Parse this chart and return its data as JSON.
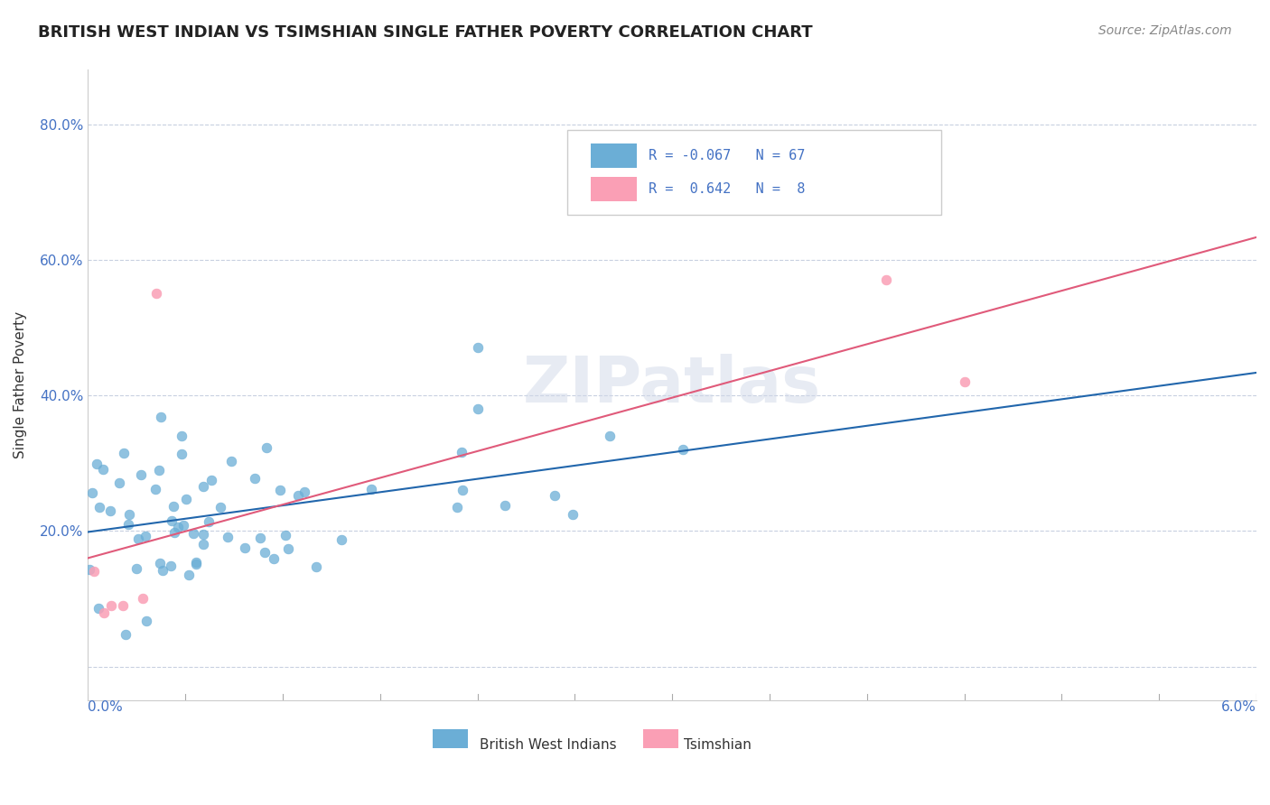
{
  "title": "BRITISH WEST INDIAN VS TSIMSHIAN SINGLE FATHER POVERTY CORRELATION CHART",
  "source": "Source: ZipAtlas.com",
  "ylabel": "Single Father Poverty",
  "color_blue": "#6baed6",
  "color_pink": "#fa9fb5",
  "color_blue_line": "#2166ac",
  "color_pink_line": "#e05a7a",
  "watermark": "ZIPatlas"
}
